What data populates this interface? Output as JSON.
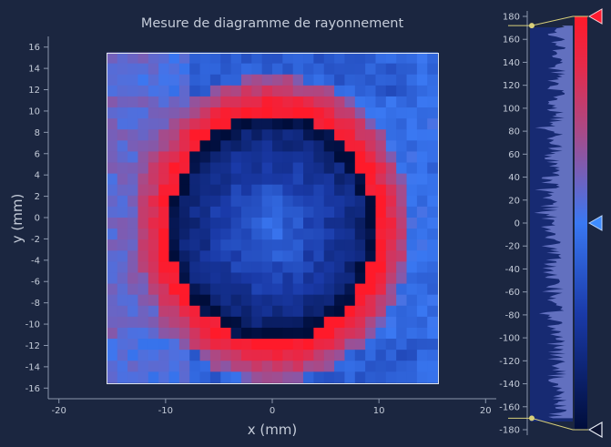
{
  "chart_data": [
    {
      "type": "heatmap",
      "title": "Mesure de diagramme de rayonnement",
      "xlabel": "x (mm)",
      "ylabel": "y (mm)",
      "xlim": [
        -21,
        21
      ],
      "ylim": [
        -17,
        17
      ],
      "data_extent": {
        "x": [
          -15.5,
          15.5
        ],
        "y": [
          -15.5,
          15.5
        ]
      },
      "grid_size": [
        32,
        30
      ],
      "x_ticks": [
        -20,
        -10,
        0,
        10,
        20
      ],
      "x_tick_labels": [
        "-20",
        "-10",
        "0",
        "10",
        "20"
      ],
      "y_ticks": [
        16,
        14,
        12,
        10,
        8,
        6,
        4,
        2,
        0,
        -2,
        -4,
        -6,
        -8,
        -10,
        -12,
        -14,
        -16
      ],
      "y_tick_labels": [
        "16",
        "14",
        "12",
        "10",
        "8",
        "6",
        "4",
        "2",
        "0",
        "-2",
        "-4",
        "-6",
        "-8",
        "-10",
        "-12",
        "-14",
        "-16"
      ],
      "value_range": [
        -180,
        180
      ],
      "ring": {
        "center": [
          0,
          -1
        ],
        "radius_x": 10,
        "radius_y": 11
      }
    },
    {
      "type": "bar",
      "name": "colorbar",
      "ylim": [
        -180,
        180
      ],
      "ticks": [
        180,
        160,
        140,
        120,
        100,
        80,
        60,
        40,
        20,
        0,
        -20,
        -40,
        -60,
        -80,
        -100,
        -120,
        -140,
        -160,
        -180
      ],
      "tick_labels": [
        "180",
        "160",
        "140",
        "120",
        "100",
        "80",
        "60",
        "40",
        "20",
        "0",
        "-20",
        "-40",
        "-60",
        "-80",
        "-100",
        "-120",
        "-140",
        "-160",
        "-180"
      ],
      "range_markers": {
        "upper": 180,
        "mid": 0,
        "lower": -180
      },
      "histogram_range": [
        -170,
        172
      ],
      "colors": {
        "high": "#ff1a2a",
        "mid": "#3a78f2",
        "low": "#000d3a"
      }
    }
  ],
  "colors": {
    "background": "#1b2640",
    "axis": "#8b97ad",
    "text": "#c4cbd8",
    "frame": "#dfe4ec",
    "marker_red": "#ff1a30",
    "marker_blue": "#3e8cff",
    "marker_dark": "#0c1330",
    "marker_line": "#d8cf7a"
  },
  "icons": [
    "upper-limit-marker",
    "center-marker",
    "lower-limit-marker"
  ]
}
